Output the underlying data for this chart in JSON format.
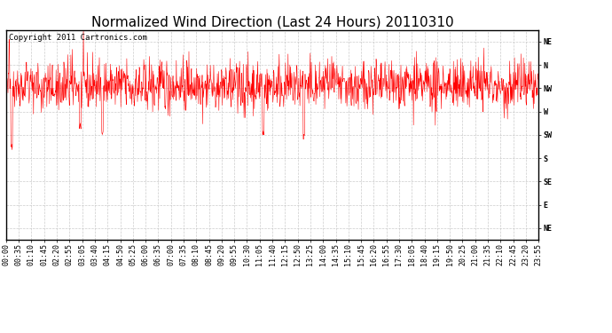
{
  "title": "Normalized Wind Direction (Last 24 Hours) 20110310",
  "copyright_text": "Copyright 2011 Cartronics.com",
  "line_color": "#ff0000",
  "background_color": "#ffffff",
  "grid_color": "#c0c0c0",
  "ytick_labels": [
    "NE",
    "N",
    "NW",
    "W",
    "SW",
    "S",
    "SE",
    "E",
    "NE"
  ],
  "ytick_values": [
    8,
    7,
    6,
    5,
    4,
    3,
    2,
    1,
    0
  ],
  "ylim": [
    -0.5,
    8.5
  ],
  "xtick_labels": [
    "00:00",
    "00:35",
    "01:10",
    "01:45",
    "02:20",
    "02:55",
    "03:05",
    "03:40",
    "04:15",
    "04:50",
    "05:25",
    "06:00",
    "06:35",
    "07:00",
    "07:35",
    "08:10",
    "08:45",
    "09:20",
    "09:55",
    "10:30",
    "11:05",
    "11:40",
    "12:15",
    "12:50",
    "13:25",
    "14:00",
    "14:35",
    "15:10",
    "15:45",
    "16:20",
    "16:55",
    "17:30",
    "18:05",
    "18:40",
    "19:15",
    "19:50",
    "20:25",
    "21:00",
    "21:35",
    "22:10",
    "22:45",
    "23:20",
    "23:55"
  ],
  "title_fontsize": 11,
  "tick_fontsize": 6,
  "copyright_fontsize": 6.5,
  "seed": 42,
  "n_points": 1440,
  "mean_direction": 6.1,
  "std_direction": 0.45
}
